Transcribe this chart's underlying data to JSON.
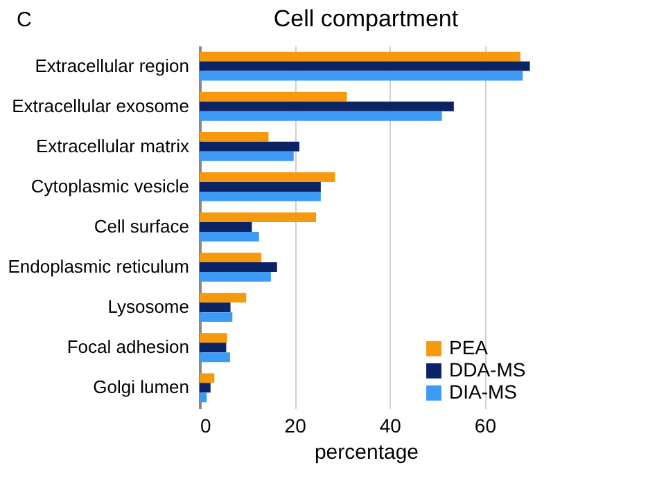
{
  "chart_data": {
    "type": "bar",
    "orientation": "horizontal",
    "title": "Cell compartment",
    "xlabel": "percentage",
    "annotations": [
      "C"
    ],
    "categories": [
      "Extracellular region",
      "Extracellular exosome",
      "Extracellular matrix",
      "Cytoplasmic vesicle",
      "Cell surface",
      "Endoplasmic reticulum",
      "Lysosome",
      "Focal adhesion",
      "Golgi lumen"
    ],
    "series": [
      {
        "name": "PEA",
        "color": "#f59a0c",
        "values": [
          67.5,
          31,
          14.5,
          28.5,
          24.5,
          13,
          9.8,
          5.8,
          3.1
        ]
      },
      {
        "name": "DDA-MS",
        "color": "#0c2366",
        "values": [
          69.5,
          53.5,
          21,
          25.5,
          11,
          16.3,
          6.5,
          5.6,
          2.3
        ]
      },
      {
        "name": "DIA-MS",
        "color": "#3d9bf5",
        "values": [
          68,
          51,
          19.8,
          25.5,
          12.5,
          15,
          6.9,
          6.4,
          1.5
        ]
      }
    ],
    "xlim": [
      0,
      70
    ],
    "xticks": [
      0,
      20,
      40,
      60
    ],
    "grid": "x",
    "legend": "bottom right"
  }
}
